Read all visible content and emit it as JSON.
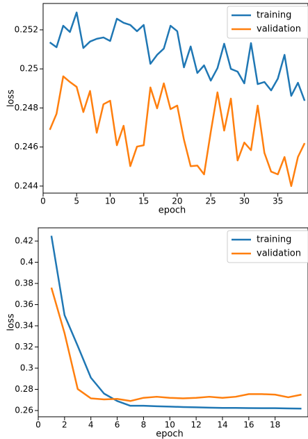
{
  "chart_data": [
    {
      "type": "line",
      "xlabel": "epoch",
      "ylabel": "loss",
      "x": [
        1,
        2,
        3,
        4,
        5,
        6,
        7,
        8,
        9,
        10,
        11,
        12,
        13,
        14,
        15,
        16,
        17,
        18,
        19,
        20,
        21,
        22,
        23,
        24,
        25,
        26,
        27,
        28,
        29,
        30,
        31,
        32,
        33,
        34,
        35,
        36,
        37,
        38,
        39
      ],
      "series": [
        {
          "name": "training",
          "color": "#1f77b4",
          "values": [
            0.25136,
            0.25111,
            0.25221,
            0.25189,
            0.25289,
            0.25107,
            0.2514,
            0.25154,
            0.25161,
            0.25143,
            0.25257,
            0.25236,
            0.25225,
            0.25193,
            0.25225,
            0.25026,
            0.25072,
            0.25104,
            0.25221,
            0.25193,
            0.25008,
            0.25115,
            0.24979,
            0.25018,
            0.2494,
            0.25004,
            0.25129,
            0.25,
            0.24986,
            0.24926,
            0.25132,
            0.24922,
            0.24933,
            0.2489,
            0.2495,
            0.25072,
            0.24862,
            0.24929,
            0.24837
          ]
        },
        {
          "name": "validation",
          "color": "#ff7f0e",
          "values": [
            0.24688,
            0.2477,
            0.24962,
            0.24933,
            0.24908,
            0.24779,
            0.24887,
            0.24673,
            0.24819,
            0.24837,
            0.24609,
            0.24709,
            0.24502,
            0.24602,
            0.24609,
            0.24905,
            0.24798,
            0.24926,
            0.24794,
            0.24812,
            0.24638,
            0.24502,
            0.24505,
            0.2446,
            0.24677,
            0.2488,
            0.24684,
            0.24848,
            0.24531,
            0.24623,
            0.24584,
            0.24812,
            0.2457,
            0.24474,
            0.2446,
            0.24549,
            0.244,
            0.24549,
            0.2462
          ]
        }
      ],
      "xlim": [
        0,
        39.5
      ],
      "xticks": [
        0,
        5,
        10,
        15,
        20,
        25,
        30,
        35
      ],
      "ylim": [
        0.24364,
        0.25335
      ],
      "yticks": [
        0.244,
        0.246,
        0.248,
        0.25,
        0.252
      ],
      "legend": "upper right"
    },
    {
      "type": "line",
      "xlabel": "epoch",
      "ylabel": "loss",
      "x": [
        1,
        2,
        3,
        4,
        5,
        6,
        7,
        8,
        9,
        10,
        11,
        12,
        13,
        14,
        15,
        16,
        17,
        18,
        19,
        20
      ],
      "series": [
        {
          "name": "training",
          "color": "#1f77b4",
          "values": [
            0.425,
            0.35,
            0.321,
            0.291,
            0.276,
            0.269,
            0.2645,
            0.2645,
            0.264,
            0.2637,
            0.2633,
            0.263,
            0.2627,
            0.2625,
            0.2625,
            0.2623,
            0.2622,
            0.2622,
            0.262,
            0.2618
          ]
        },
        {
          "name": "validation",
          "color": "#ff7f0e",
          "values": [
            0.376,
            0.333,
            0.2803,
            0.2715,
            0.2705,
            0.271,
            0.269,
            0.272,
            0.273,
            0.272,
            0.2715,
            0.272,
            0.273,
            0.272,
            0.273,
            0.2755,
            0.2755,
            0.275,
            0.2725,
            0.275
          ]
        }
      ],
      "xlim": [
        0,
        20.5
      ],
      "xticks": [
        0,
        2,
        4,
        6,
        8,
        10,
        12,
        14,
        16,
        18
      ],
      "ylim": [
        0.2541,
        0.4325
      ],
      "yticks": [
        0.26,
        0.28,
        0.3,
        0.32,
        0.34,
        0.36,
        0.38,
        0.4,
        0.42
      ],
      "legend": "upper right"
    }
  ]
}
